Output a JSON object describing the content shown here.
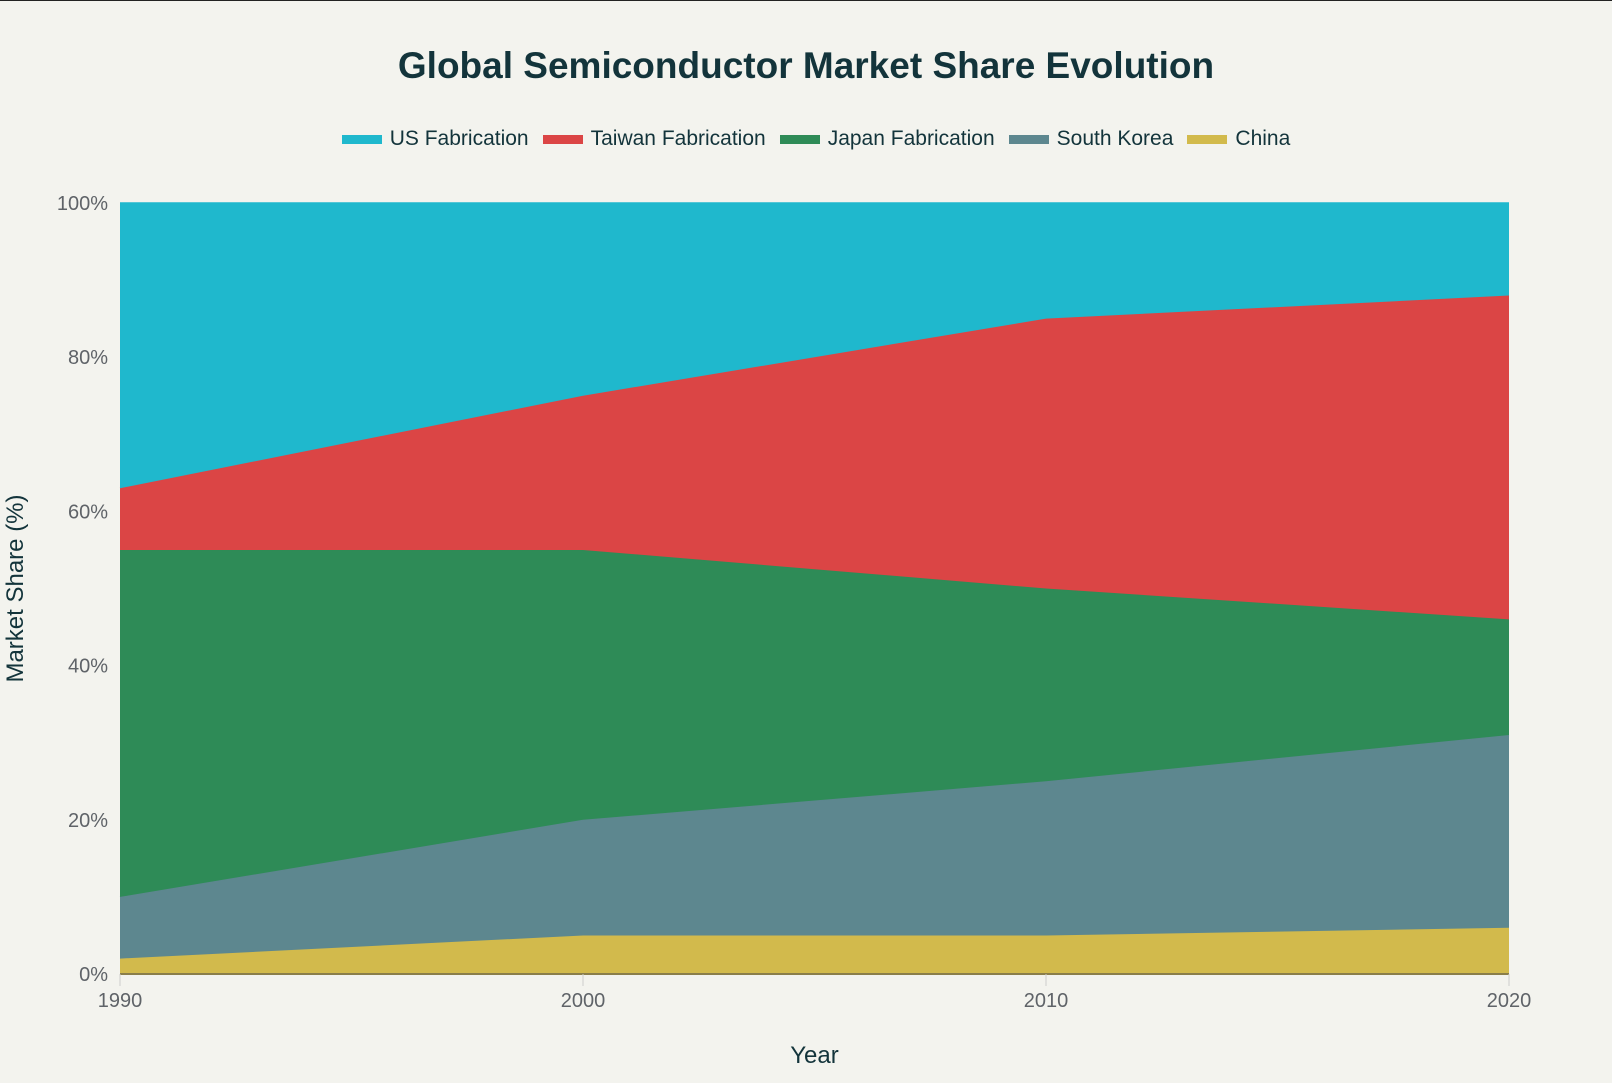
{
  "chart_data": {
    "type": "area",
    "stacked": true,
    "title": "Global Semiconductor Market Share Evolution",
    "xlabel": "Year",
    "ylabel": "Market Share (%)",
    "x": [
      1990,
      2000,
      2010,
      2020
    ],
    "xticks": [
      "1990",
      "2000",
      "2010",
      "2020"
    ],
    "yticks": [
      "0%",
      "20%",
      "40%",
      "60%",
      "80%",
      "100%"
    ],
    "ylim": [
      0,
      100
    ],
    "legend_position": "top",
    "grid": false,
    "series": [
      {
        "name": "US Fabrication",
        "color": "#1fb8cd",
        "values": [
          37,
          25,
          15,
          12
        ]
      },
      {
        "name": "Taiwan Fabrication",
        "color": "#db4545",
        "values": [
          8,
          20,
          35,
          42
        ]
      },
      {
        "name": "Japan Fabrication",
        "color": "#2e8b57",
        "values": [
          45,
          35,
          25,
          15
        ]
      },
      {
        "name": "South Korea",
        "color": "#5d878f",
        "values": [
          8,
          15,
          20,
          25
        ]
      },
      {
        "name": "China",
        "color": "#d2ba4c",
        "values": [
          2,
          5,
          5,
          6
        ]
      }
    ]
  }
}
